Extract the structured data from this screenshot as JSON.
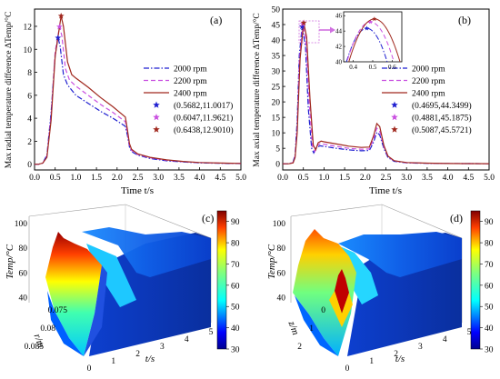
{
  "panels": {
    "a": {
      "tag": "(a)",
      "ylabel": "Max radial temperature difference ΔTemp/°C",
      "xlabel": "Time t/s"
    },
    "b": {
      "tag": "(b)",
      "ylabel": "Max axial temperature difference ΔTemp/°C",
      "xlabel": "Time t/s"
    },
    "c": {
      "tag": "(c)",
      "zlabel": "Temp/°C",
      "ylabel": "r/m",
      "xlabel": "t/s"
    },
    "d": {
      "tag": "(d)",
      "zlabel": "Temp/°C",
      "ylabel": "z/m",
      "xlabel": "t/s"
    }
  },
  "colors": {
    "rpm2000": "#1f1fd0",
    "rpm2200": "#c94fe0",
    "rpm2400": "#a0281e"
  },
  "chart_data": [
    {
      "id": "a",
      "type": "line",
      "xlabel": "Time t/s",
      "ylabel": "Max radial temperature difference ΔTemp/°C",
      "xlim": [
        0,
        5
      ],
      "ylim": [
        -0.5,
        13.5
      ],
      "xticks": [
        "0.0",
        "0.5",
        "1.0",
        "1.5",
        "2.0",
        "2.5",
        "3.0",
        "3.5",
        "4.0",
        "4.5",
        "5.0"
      ],
      "yticks": [
        "0",
        "2",
        "4",
        "6",
        "8",
        "10",
        "12"
      ],
      "legend_position": "right",
      "series": [
        {
          "name": "2000 rpm",
          "style": "dashdot",
          "color": "#1f1fd0",
          "x": [
            0,
            0.1,
            0.2,
            0.3,
            0.4,
            0.5,
            0.5682,
            0.62,
            0.7,
            0.8,
            1.0,
            1.3,
            1.6,
            1.9,
            2.2,
            2.25,
            2.3,
            2.35,
            2.5,
            2.8,
            3.2,
            3.6,
            4.0,
            4.5,
            5.0
          ],
          "y": [
            0,
            0,
            0.1,
            0.8,
            4.5,
            9.5,
            11.0017,
            10.3,
            7.8,
            6.9,
            6.0,
            5.3,
            4.6,
            4.0,
            3.3,
            2.5,
            1.5,
            1.1,
            0.8,
            0.5,
            0.3,
            0.2,
            0.12,
            0.08,
            0.05
          ]
        },
        {
          "name": "2200 rpm",
          "style": "dash",
          "color": "#c94fe0",
          "x": [
            0,
            0.1,
            0.2,
            0.3,
            0.4,
            0.5,
            0.6047,
            0.66,
            0.75,
            0.85,
            1.0,
            1.3,
            1.6,
            1.9,
            2.2,
            2.25,
            2.3,
            2.35,
            2.5,
            2.8,
            3.2,
            3.6,
            4.0,
            4.5,
            5.0
          ],
          "y": [
            0,
            0,
            0.1,
            0.7,
            4.2,
            9.8,
            11.9621,
            11.2,
            8.3,
            7.3,
            6.8,
            6.0,
            5.2,
            4.5,
            3.7,
            2.7,
            1.6,
            1.2,
            0.85,
            0.55,
            0.35,
            0.22,
            0.14,
            0.09,
            0.06
          ]
        },
        {
          "name": "2400 rpm",
          "style": "solid",
          "color": "#a0281e",
          "x": [
            0,
            0.1,
            0.2,
            0.3,
            0.4,
            0.5,
            0.6438,
            0.7,
            0.8,
            0.9,
            1.0,
            1.3,
            1.6,
            1.9,
            2.2,
            2.25,
            2.3,
            2.35,
            2.5,
            2.8,
            3.2,
            3.6,
            4.0,
            4.5,
            5.0
          ],
          "y": [
            0,
            0,
            0.1,
            0.6,
            3.8,
            9.4,
            12.901,
            12.0,
            8.9,
            7.8,
            7.5,
            6.7,
            5.8,
            5.0,
            4.1,
            3.0,
            1.8,
            1.3,
            0.9,
            0.6,
            0.38,
            0.24,
            0.15,
            0.1,
            0.07
          ]
        }
      ],
      "peaks": [
        {
          "label": "(0.5682,11.0017)",
          "x": 0.5682,
          "y": 11.0017,
          "color": "#1f1fd0"
        },
        {
          "label": "(0.6047,11.9621)",
          "x": 0.6047,
          "y": 11.9621,
          "color": "#c94fe0"
        },
        {
          "label": "(0.6438,12.9010)",
          "x": 0.6438,
          "y": 12.901,
          "color": "#a0281e"
        }
      ]
    },
    {
      "id": "b",
      "type": "line",
      "xlabel": "Time t/s",
      "ylabel": "Max axial temperature difference ΔTemp/°C",
      "xlim": [
        0,
        5
      ],
      "ylim": [
        -2,
        50
      ],
      "xticks": [
        "0.0",
        "0.5",
        "1.0",
        "1.5",
        "2.0",
        "2.5",
        "3.0",
        "3.5",
        "4.0",
        "4.5",
        "5.0"
      ],
      "yticks": [
        "0",
        "5",
        "10",
        "15",
        "20",
        "25",
        "30",
        "35",
        "40",
        "45",
        "50"
      ],
      "legend_position": "right",
      "series": [
        {
          "name": "2000 rpm",
          "style": "dashdot",
          "color": "#1f1fd0",
          "x": [
            0,
            0.15,
            0.25,
            0.3,
            0.35,
            0.4,
            0.4695,
            0.55,
            0.62,
            0.7,
            0.75,
            0.8,
            0.9,
            1.0,
            1.3,
            1.6,
            1.9,
            2.1,
            2.2,
            2.28,
            2.35,
            2.45,
            2.55,
            2.7,
            3.0,
            3.5,
            4.0,
            4.5,
            5.0
          ],
          "y": [
            0,
            0,
            0.5,
            3,
            14,
            35,
            44.3499,
            38,
            18,
            5,
            3.5,
            5,
            5.8,
            5.6,
            5.0,
            4.5,
            4.2,
            4.3,
            7,
            10.2,
            9.3,
            5,
            2,
            0.8,
            0.3,
            0.15,
            0.08,
            0.05,
            0.03
          ]
        },
        {
          "name": "2200 rpm",
          "style": "dash",
          "color": "#c94fe0",
          "x": [
            0,
            0.15,
            0.25,
            0.3,
            0.35,
            0.4,
            0.4881,
            0.56,
            0.64,
            0.72,
            0.78,
            0.83,
            0.9,
            1.0,
            1.3,
            1.6,
            1.9,
            2.1,
            2.2,
            2.28,
            2.35,
            2.45,
            2.55,
            2.7,
            3.0,
            3.5,
            4.0,
            4.5,
            5.0
          ],
          "y": [
            0,
            0,
            0.4,
            2.5,
            12,
            33,
            45.1875,
            40,
            20,
            5.5,
            4,
            5.8,
            6.5,
            6.3,
            5.6,
            5.0,
            4.7,
            4.8,
            8,
            11.5,
            10.5,
            5.5,
            2.3,
            0.9,
            0.35,
            0.17,
            0.09,
            0.05,
            0.03
          ]
        },
        {
          "name": "2400 rpm",
          "style": "solid",
          "color": "#a0281e",
          "x": [
            0,
            0.15,
            0.25,
            0.3,
            0.35,
            0.42,
            0.5087,
            0.58,
            0.66,
            0.74,
            0.8,
            0.86,
            0.93,
            1.0,
            1.3,
            1.6,
            1.9,
            2.1,
            2.2,
            2.28,
            2.35,
            2.45,
            2.55,
            2.7,
            3.0,
            3.5,
            4.0,
            4.5,
            5.0
          ],
          "y": [
            0,
            0,
            0.3,
            2,
            10,
            34,
            45.5721,
            41,
            21,
            6,
            4.5,
            6.8,
            7.3,
            7.1,
            6.4,
            5.7,
            5.3,
            5.4,
            9,
            13,
            12,
            6,
            2.5,
            1,
            0.4,
            0.2,
            0.1,
            0.06,
            0.03
          ]
        }
      ],
      "peaks": [
        {
          "label": "(0.4695,44.3499)",
          "x": 0.4695,
          "y": 44.3499,
          "color": "#1f1fd0"
        },
        {
          "label": "(0.4881,45.1875)",
          "x": 0.4881,
          "y": 45.1875,
          "color": "#c94fe0"
        },
        {
          "label": "(0.5087,45.5721)",
          "x": 0.5087,
          "y": 45.5721,
          "color": "#a0281e"
        }
      ],
      "inset": {
        "xlim": [
          0.35,
          0.65
        ],
        "ylim": [
          40,
          46.5
        ],
        "xticks": [
          "0.4",
          "0.5",
          "0.6"
        ],
        "yticks": [
          "40",
          "42",
          "44",
          "46"
        ]
      }
    },
    {
      "id": "c",
      "type": "surface",
      "zlabel": "Temp/°C",
      "ylabel": "r/m",
      "xlabel": "t/s",
      "zticks": [
        "40",
        "60",
        "80",
        "100"
      ],
      "yticks": [
        "0.075",
        "0.08",
        "0.085"
      ],
      "xticks": [
        "0",
        "1",
        "2",
        "3",
        "4",
        "5"
      ],
      "colorbar_ticks": [
        "30",
        "40",
        "50",
        "60",
        "70",
        "80",
        "90"
      ],
      "colorbar_range": [
        30,
        95
      ]
    },
    {
      "id": "d",
      "type": "surface",
      "zlabel": "Temp/°C",
      "ylabel": "z/m",
      "xlabel": "t/s",
      "zticks": [
        "40",
        "60",
        "80",
        "100"
      ],
      "yticks": [
        "0",
        "1",
        "2"
      ],
      "xticks": [
        "0",
        "1",
        "2",
        "3",
        "4",
        "5"
      ],
      "colorbar_ticks": [
        "30",
        "40",
        "50",
        "60",
        "70",
        "80",
        "90"
      ],
      "colorbar_range": [
        30,
        95
      ]
    }
  ]
}
